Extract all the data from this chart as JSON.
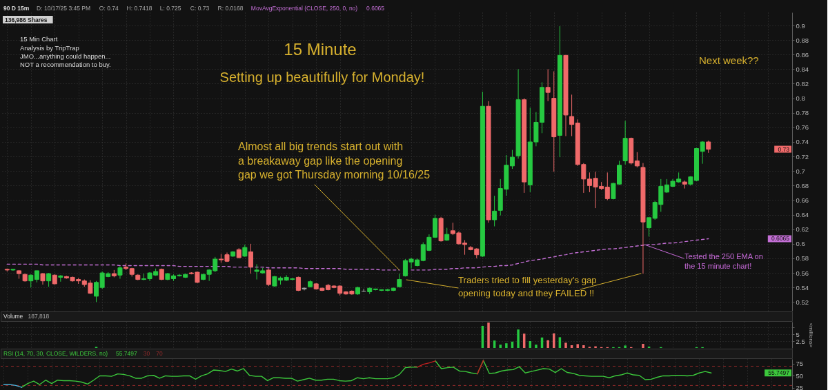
{
  "chart_data": [
    {
      "type": "candlestick",
      "title": "15 Minute",
      "subtitle": "Setting up beautifully for Monday!",
      "categories": [
        null,
        null,
        null,
        null,
        null,
        null,
        null,
        null,
        null,
        null,
        null,
        null,
        null,
        null,
        null,
        null,
        null,
        null,
        null,
        null,
        null,
        null,
        null,
        null,
        null,
        null,
        null,
        null,
        null,
        null,
        null,
        null,
        null,
        null,
        null,
        null,
        null,
        null,
        null,
        null,
        null,
        null,
        null,
        null,
        null,
        null,
        null,
        null,
        null,
        null,
        null,
        null,
        null,
        null,
        null,
        null,
        null,
        null,
        null,
        null,
        null,
        null,
        null,
        null,
        null,
        null,
        null,
        null,
        null,
        null,
        null,
        null,
        null,
        null,
        null,
        null,
        null,
        null,
        null,
        null,
        null,
        null,
        null,
        null,
        null,
        null,
        null,
        null,
        null,
        null,
        null,
        null,
        null,
        null,
        null,
        null,
        null,
        null,
        null,
        null,
        null,
        null,
        null,
        null,
        null,
        null,
        null,
        null,
        null,
        null,
        null,
        null,
        null,
        null,
        null,
        null,
        null,
        null,
        null,
        null,
        null,
        null,
        null,
        null,
        null,
        null,
        null,
        null,
        null,
        null,
        null,
        null
      ],
      "ylim": [
        0.508,
        0.918
      ],
      "yticks": [
        0.52,
        0.54,
        0.56,
        0.58,
        0.6,
        0.62,
        0.64,
        0.66,
        0.68,
        0.7,
        0.72,
        0.74,
        0.76,
        0.78,
        0.8,
        0.82,
        0.84,
        0.86,
        0.88,
        0.9
      ],
      "grid": true,
      "tick_labels": "y",
      "legend": "top left",
      "series": [
        {
          "type": "candlestick",
          "ohlc": [
            [
              0.565,
              0.566,
              0.562,
              0.564
            ],
            [
              0.564,
              0.565,
              0.563,
              0.565
            ],
            [
              0.563,
              0.564,
              0.552,
              0.559
            ],
            [
              0.558,
              0.559,
              0.548,
              0.549
            ],
            [
              0.549,
              0.558,
              0.54,
              0.557
            ],
            [
              0.551,
              0.563,
              0.547,
              0.563
            ],
            [
              0.559,
              0.56,
              0.544,
              0.549
            ],
            [
              0.549,
              0.56,
              0.541,
              0.559
            ],
            [
              0.557,
              0.558,
              0.544,
              0.545
            ],
            [
              0.554,
              0.557,
              0.548,
              0.556
            ],
            [
              0.555,
              0.556,
              0.552,
              0.553
            ],
            [
              0.554,
              0.555,
              0.548,
              0.549
            ],
            [
              0.551,
              0.553,
              0.545,
              0.549
            ],
            [
              0.549,
              0.551,
              0.541,
              0.544
            ],
            [
              0.546,
              0.55,
              0.531,
              0.532
            ],
            [
              0.528,
              0.549,
              0.52,
              0.547
            ],
            [
              0.54,
              0.562,
              0.538,
              0.56
            ],
            [
              0.555,
              0.561,
              0.554,
              0.559
            ],
            [
              0.559,
              0.564,
              0.554,
              0.556
            ],
            [
              0.557,
              0.569,
              0.552,
              0.567
            ],
            [
              0.568,
              0.573,
              0.564,
              0.566
            ],
            [
              0.566,
              0.567,
              0.555,
              0.558
            ],
            [
              0.557,
              0.558,
              0.55,
              0.551
            ],
            [
              0.551,
              0.559,
              0.55,
              0.552
            ],
            [
              0.552,
              0.561,
              0.549,
              0.56
            ],
            [
              0.557,
              0.566,
              0.556,
              0.562
            ],
            [
              0.565,
              0.566,
              0.55,
              0.551
            ],
            [
              0.551,
              0.56,
              0.55,
              0.559
            ],
            [
              0.552,
              0.558,
              0.549,
              0.556
            ],
            [
              0.556,
              0.558,
              0.555,
              0.557
            ],
            [
              0.554,
              0.559,
              0.553,
              0.558
            ],
            [
              0.56,
              0.561,
              0.558,
              0.559
            ],
            [
              0.561,
              0.562,
              0.546,
              0.547
            ],
            [
              0.551,
              0.559,
              0.55,
              0.558
            ],
            [
              0.558,
              0.565,
              0.549,
              0.564
            ],
            [
              0.563,
              0.582,
              0.561,
              0.579
            ],
            [
              0.579,
              0.586,
              0.574,
              0.578
            ],
            [
              0.585,
              0.588,
              0.575,
              0.576
            ],
            [
              0.583,
              0.59,
              0.582,
              0.589
            ],
            [
              0.592,
              0.594,
              0.58,
              0.581
            ],
            [
              0.583,
              0.599,
              0.582,
              0.595
            ],
            [
              0.589,
              0.6,
              0.559,
              0.568
            ],
            [
              0.562,
              0.572,
              0.551,
              0.564
            ],
            [
              0.56,
              0.567,
              0.559,
              0.563
            ],
            [
              0.564,
              0.566,
              0.542,
              0.544
            ],
            [
              0.542,
              0.556,
              0.541,
              0.555
            ],
            [
              0.55,
              0.555,
              0.544,
              0.553
            ],
            [
              0.55,
              0.557,
              0.549,
              0.554
            ],
            [
              0.551,
              0.553,
              0.55,
              0.552
            ],
            [
              0.554,
              0.555,
              0.535,
              0.536
            ],
            [
              0.538,
              0.54,
              0.536,
              0.539
            ],
            [
              0.541,
              0.55,
              0.54,
              0.548
            ],
            [
              0.545,
              0.546,
              0.537,
              0.538
            ],
            [
              0.539,
              0.54,
              0.535,
              0.536
            ],
            [
              0.543,
              0.545,
              0.536,
              0.537
            ],
            [
              0.542,
              0.543,
              0.539,
              0.54
            ],
            [
              0.542,
              0.543,
              0.529,
              0.532
            ],
            [
              0.534,
              0.535,
              0.53,
              0.531
            ],
            [
              0.535,
              0.536,
              0.53,
              0.531
            ],
            [
              0.531,
              0.541,
              0.53,
              0.54
            ],
            [
              0.535,
              0.538,
              0.534,
              0.535
            ],
            [
              0.534,
              0.54,
              0.531,
              0.539
            ],
            [
              0.537,
              0.538,
              0.536,
              0.538
            ],
            [
              0.536,
              0.537,
              0.535,
              0.537
            ],
            [
              0.536,
              0.538,
              0.535,
              0.537
            ],
            [
              0.536,
              0.54,
              0.535,
              0.539
            ],
            [
              0.541,
              0.559,
              0.54,
              0.551
            ],
            [
              0.556,
              0.579,
              0.555,
              0.577
            ],
            [
              0.575,
              0.581,
              0.566,
              0.579
            ],
            [
              0.57,
              0.58,
              0.569,
              0.578
            ],
            [
              0.577,
              0.602,
              0.576,
              0.599
            ],
            [
              0.591,
              0.613,
              0.59,
              0.609
            ],
            [
              0.609,
              0.64,
              0.608,
              0.635
            ],
            [
              0.635,
              0.637,
              0.603,
              0.604
            ],
            [
              0.605,
              0.622,
              0.604,
              0.613
            ],
            [
              0.618,
              0.629,
              0.612,
              0.614
            ],
            [
              0.615,
              0.617,
              0.599,
              0.6
            ],
            [
              0.601,
              0.605,
              0.585,
              0.599
            ],
            [
              0.595,
              0.597,
              0.591,
              0.592
            ],
            [
              0.593,
              0.594,
              0.58,
              0.585
            ],
            [
              0.583,
              0.809,
              0.582,
              0.789
            ],
            [
              0.789,
              0.796,
              0.629,
              0.633
            ],
            [
              0.633,
              0.666,
              0.624,
              0.645
            ],
            [
              0.646,
              0.689,
              0.639,
              0.676
            ],
            [
              0.675,
              0.722,
              0.666,
              0.708
            ],
            [
              0.707,
              0.729,
              0.703,
              0.719
            ],
            [
              0.721,
              0.84,
              0.717,
              0.798
            ],
            [
              0.798,
              0.8,
              0.67,
              0.685
            ],
            [
              0.681,
              0.787,
              0.671,
              0.74
            ],
            [
              0.74,
              0.781,
              0.734,
              0.767
            ],
            [
              0.767,
              0.822,
              0.752,
              0.815
            ],
            [
              0.815,
              0.84,
              0.796,
              0.808
            ],
            [
              0.8,
              0.837,
              0.699,
              0.747
            ],
            [
              0.749,
              0.899,
              0.719,
              0.859
            ],
            [
              0.859,
              0.859,
              0.748,
              0.777
            ],
            [
              0.775,
              0.805,
              0.748,
              0.764
            ],
            [
              0.766,
              0.771,
              0.707,
              0.709
            ],
            [
              0.709,
              0.711,
              0.67,
              0.689
            ],
            [
              0.689,
              0.698,
              0.671,
              0.68
            ],
            [
              0.69,
              0.699,
              0.649,
              0.678
            ],
            [
              0.679,
              0.685,
              0.674,
              0.676
            ],
            [
              0.678,
              0.698,
              0.66,
              0.662
            ],
            [
              0.662,
              0.684,
              0.661,
              0.683
            ],
            [
              0.682,
              0.714,
              0.681,
              0.708
            ],
            [
              0.714,
              0.769,
              0.709,
              0.745
            ],
            [
              0.745,
              0.746,
              0.709,
              0.711
            ],
            [
              0.714,
              0.726,
              0.705,
              0.707
            ],
            [
              0.705,
              0.711,
              0.559,
              0.63
            ],
            [
              0.622,
              0.636,
              0.61,
              0.636
            ],
            [
              0.635,
              0.659,
              0.633,
              0.657
            ],
            [
              0.654,
              0.689,
              0.644,
              0.679
            ],
            [
              0.671,
              0.689,
              0.67,
              0.681
            ],
            [
              0.679,
              0.689,
              0.678,
              0.686
            ],
            [
              0.685,
              0.698,
              0.684,
              0.689
            ],
            [
              0.685,
              0.687,
              0.676,
              0.682
            ],
            [
              0.682,
              0.693,
              0.68,
              0.692
            ],
            [
              0.687,
              0.732,
              0.686,
              0.731
            ],
            [
              0.727,
              0.741,
              0.71,
              0.74
            ],
            [
              0.74,
              0.7418,
              0.725,
              0.73
            ],
            null,
            null,
            null,
            null,
            null,
            null,
            null,
            null,
            null,
            null,
            null,
            null,
            null
          ],
          "colors": [
            "#f06a6a",
            "#26c941",
            "#f06a6a",
            "#f06a6a",
            "#26c941",
            "#26c941",
            "#f06a6a",
            "#26c941",
            "#f06a6a",
            "#26c941",
            "#f06a6a",
            "#f06a6a",
            "#f06a6a",
            "#f06a6a",
            "#f06a6a",
            "#26c941",
            "#26c941",
            "#26c941",
            "#f06a6a",
            "#26c941",
            "#f06a6a",
            "#f06a6a",
            "#f06a6a",
            "#26c941",
            "#26c941",
            "#26c941",
            "#f06a6a",
            "#26c941",
            "#26c941",
            "#26c941",
            "#26c941",
            "#f06a6a",
            "#f06a6a",
            "#26c941",
            "#26c941",
            "#26c941",
            "#f06a6a",
            "#f06a6a",
            "#26c941",
            "#f06a6a",
            "#26c941",
            "#f06a6a",
            "#26c941",
            "#26c941",
            "#f06a6a",
            "#26c941",
            "#26c941",
            "#26c941",
            "#26c941",
            "#f06a6a",
            "#a8a8a8",
            "#26c941",
            "#f06a6a",
            "#f06a6a",
            "#f06a6a",
            "#f06a6a",
            "#f06a6a",
            "#f06a6a",
            "#f06a6a",
            "#26c941",
            "#a8a8a8",
            "#26c941",
            "#26c941",
            "#26c941",
            "#26c941",
            "#26c941",
            "#26c941",
            "#26c941",
            "#26c941",
            "#26c941",
            "#26c941",
            "#26c941",
            "#26c941",
            "#f06a6a",
            "#26c941",
            "#f06a6a",
            "#f06a6a",
            "#f06a6a",
            "#f06a6a",
            "#f06a6a",
            "#26c941",
            "#f06a6a",
            "#26c941",
            "#26c941",
            "#26c941",
            "#26c941",
            "#26c941",
            "#f06a6a",
            "#26c941",
            "#26c941",
            "#26c941",
            "#f06a6a",
            "#f06a6a",
            "#26c941",
            "#f06a6a",
            "#f06a6a",
            "#f06a6a",
            "#f06a6a",
            "#f06a6a",
            "#f06a6a",
            "#f06a6a",
            "#f06a6a",
            "#26c941",
            "#26c941",
            "#26c941",
            "#f06a6a",
            "#f06a6a",
            "#f06a6a",
            "#26c941",
            "#26c941",
            "#26c941",
            "#26c941",
            "#26c941",
            "#26c941",
            "#f06a6a",
            "#26c941",
            "#26c941",
            "#26c941",
            "#f06a6a",
            null,
            null,
            null,
            null,
            null,
            null,
            null,
            null,
            null,
            null,
            null,
            null,
            null
          ]
        },
        {
          "type": "line",
          "name": "MovAvgExponential (CLOSE, 250, 0, no)",
          "color": "#c46fd6",
          "line_style": "dashed",
          "values": [
            0.572,
            0.572,
            0.572,
            0.572,
            0.572,
            0.572,
            0.571,
            0.571,
            0.571,
            0.571,
            0.571,
            0.571,
            0.571,
            0.571,
            0.571,
            0.571,
            0.571,
            0.571,
            0.571,
            0.57,
            0.57,
            0.57,
            0.57,
            0.57,
            0.57,
            0.57,
            0.57,
            0.57,
            0.57,
            0.569,
            0.569,
            0.569,
            0.569,
            0.569,
            0.569,
            0.569,
            0.569,
            0.569,
            0.568,
            0.568,
            0.568,
            0.568,
            0.568,
            0.568,
            0.567,
            0.567,
            0.567,
            0.567,
            0.567,
            0.567,
            0.566,
            0.566,
            0.566,
            0.566,
            0.566,
            0.566,
            0.566,
            0.565,
            0.565,
            0.565,
            0.565,
            0.565,
            0.565,
            0.564,
            0.564,
            0.564,
            0.564,
            null,
            0.564,
            0.564,
            0.564,
            0.564,
            0.565,
            0.565,
            0.565,
            0.566,
            0.566,
            0.567,
            0.567,
            0.567,
            0.568,
            0.569,
            0.569,
            0.57,
            0.57,
            0.571,
            0.573,
            0.575,
            0.577,
            0.578,
            0.579,
            0.581,
            0.582,
            0.584,
            0.585,
            0.587,
            0.588,
            0.589,
            0.59,
            0.591,
            0.592,
            0.593,
            0.593,
            0.594,
            0.595,
            0.596,
            0.597,
            0.598,
            0.599,
            0.599,
            0.6,
            0.601,
            0.601,
            0.602,
            0.603,
            0.604,
            0.605,
            0.606,
            0.607,
            null,
            null,
            null,
            null,
            null,
            null,
            null,
            null,
            null,
            null,
            null,
            null,
            null
          ]
        }
      ],
      "annotations": [
        "90 D 15m",
        "D: 10/17/25 3:45 PM",
        "O: 0.74",
        "H: 0.7418",
        "L: 0.725",
        "C: 0.73",
        "R: 0.0168",
        "0.6065",
        "136,986 Shares",
        "15 Min Chart",
        "Analysis by TripTrap",
        "JMO...anything could happen...",
        "NOT a recommendation to buy.",
        "Almost all big trends start out with\na breakaway gap like  the opening\ngap we got Thursday morning 10/16/25",
        "Next week??",
        "Traders tried to fill yesterday's gap\nopening today and they FAILED !!",
        "Tested the 250 EMA on\nthe 15 minute chart!",
        "0.73",
        "0.6065"
      ]
    },
    {
      "type": "bar",
      "ylabel": "<millions>",
      "categories": [
        null,
        null,
        null,
        null,
        null,
        null,
        null,
        null,
        null,
        null,
        null,
        null,
        null,
        null,
        null,
        null,
        null,
        null,
        null,
        null,
        null,
        null,
        null,
        null,
        null,
        null,
        null,
        null,
        null,
        null,
        null,
        null,
        null,
        null,
        null,
        null,
        null,
        null,
        null,
        null,
        null,
        null,
        null,
        null,
        null,
        null,
        null,
        null,
        null,
        null,
        null,
        null,
        null,
        null,
        null,
        null,
        null,
        null,
        null,
        null,
        null,
        null,
        null,
        null,
        null,
        null,
        null,
        null,
        null,
        null,
        null,
        null,
        null,
        null,
        null,
        null,
        null,
        null,
        null,
        null,
        null,
        null,
        null,
        null,
        null,
        null,
        null,
        null,
        null,
        null,
        null,
        null,
        null,
        null,
        null,
        null,
        null,
        null,
        null,
        null,
        null,
        null,
        null,
        null,
        null,
        null,
        null,
        null,
        null,
        null,
        null,
        null,
        null,
        null,
        null,
        null,
        null,
        null,
        null,
        null,
        null,
        null,
        null,
        null,
        null,
        null,
        null,
        null,
        null,
        null,
        null,
        null
      ],
      "ylim": [
        0,
        9.5
      ],
      "yticks": [
        2.5,
        5,
        {
          "value": 7.5,
          "label": null
        }
      ],
      "grid": true,
      "tick_labels": "y",
      "legend": "top left",
      "series": [
        {
          "name": "Volume",
          "values": [
            null,
            null,
            null,
            null,
            null,
            null,
            null,
            null,
            null,
            null,
            null,
            null,
            null,
            null,
            null,
            0.4,
            null,
            null,
            null,
            null,
            null,
            null,
            null,
            null,
            null,
            null,
            null,
            null,
            null,
            null,
            null,
            null,
            null,
            null,
            null,
            null,
            null,
            null,
            null,
            null,
            null,
            null,
            null,
            null,
            null,
            null,
            null,
            null,
            null,
            null,
            null,
            null,
            null,
            null,
            null,
            null,
            null,
            null,
            null,
            null,
            null,
            null,
            null,
            null,
            null,
            null,
            null,
            null,
            null,
            null,
            null,
            null,
            null,
            null,
            null,
            null,
            null,
            null,
            null,
            null,
            8.0,
            9.2,
            2.7,
            1.2,
            1.7,
            2.3,
            6.7,
            5.2,
            2.5,
            1.2,
            3.8,
            2.8,
            5.3,
            3.9,
            1.9,
            1.0,
            1.4,
            1.0,
            0.4,
            0.6,
            0.3,
            0.3,
            0.3,
            0.3,
            0.9,
            0.3,
            null,
            1.5,
            0.5,
            null,
            0.3,
            null,
            null,
            null,
            null,
            null,
            0.3,
            0.3,
            null,
            null,
            null,
            null,
            null,
            null,
            null,
            null,
            null,
            null,
            null,
            null,
            null,
            null
          ],
          "colors": [
            "#f06a6a",
            "#26c941",
            "#f06a6a",
            "#f06a6a",
            "#26c941",
            "#26c941",
            "#f06a6a",
            "#26c941",
            "#f06a6a",
            "#26c941",
            "#f06a6a",
            "#f06a6a",
            "#f06a6a",
            "#f06a6a",
            "#f06a6a",
            "#26c941",
            "#26c941",
            "#26c941",
            "#f06a6a",
            "#26c941",
            "#f06a6a",
            "#f06a6a",
            "#f06a6a",
            "#26c941",
            "#26c941",
            "#26c941",
            "#f06a6a",
            "#26c941",
            "#26c941",
            "#26c941",
            "#26c941",
            "#f06a6a",
            "#f06a6a",
            "#26c941",
            "#26c941",
            "#26c941",
            "#f06a6a",
            "#f06a6a",
            "#26c941",
            "#f06a6a",
            "#26c941",
            "#f06a6a",
            "#26c941",
            "#26c941",
            "#f06a6a",
            "#26c941",
            "#26c941",
            "#26c941",
            "#26c941",
            "#f06a6a",
            "#a8a8a8",
            "#26c941",
            "#f06a6a",
            "#f06a6a",
            "#f06a6a",
            "#f06a6a",
            "#f06a6a",
            "#f06a6a",
            "#f06a6a",
            "#26c941",
            "#a8a8a8",
            "#26c941",
            "#26c941",
            "#26c941",
            "#26c941",
            "#26c941",
            "#26c941",
            "#26c941",
            "#26c941",
            "#26c941",
            "#26c941",
            "#26c941",
            "#26c941",
            "#f06a6a",
            "#26c941",
            "#f06a6a",
            "#f06a6a",
            "#f06a6a",
            "#f06a6a",
            "#f06a6a",
            "#26c941",
            "#f06a6a",
            "#26c941",
            "#26c941",
            "#26c941",
            "#26c941",
            "#26c941",
            "#f06a6a",
            "#26c941",
            "#26c941",
            "#26c941",
            "#f06a6a",
            "#f06a6a",
            "#26c941",
            "#f06a6a",
            "#f06a6a",
            "#f06a6a",
            "#f06a6a",
            "#f06a6a",
            "#f06a6a",
            "#f06a6a",
            "#f06a6a",
            "#26c941",
            "#26c941",
            "#26c941",
            "#f06a6a",
            "#f06a6a",
            "#f06a6a",
            "#26c941",
            "#26c941",
            "#26c941",
            "#26c941",
            "#26c941",
            "#26c941",
            "#f06a6a",
            "#26c941",
            "#26c941",
            "#26c941",
            "#f06a6a",
            null,
            null,
            null,
            null,
            null,
            null,
            null,
            null,
            null,
            null,
            null,
            null,
            null
          ]
        }
      ],
      "annotations": [
        "187,818"
      ]
    },
    {
      "type": "line",
      "categories": [
        null,
        null,
        null,
        null,
        null,
        null,
        null,
        null,
        null,
        null,
        null,
        null,
        null,
        null,
        null,
        null,
        null,
        null,
        null,
        null,
        null,
        null,
        null,
        null,
        null,
        null,
        null,
        null,
        null,
        null,
        null,
        null,
        null,
        null,
        null,
        null,
        null,
        null,
        null,
        null,
        null,
        null,
        null,
        null,
        null,
        null,
        null,
        null,
        null,
        null,
        null,
        null,
        null,
        null,
        null,
        null,
        null,
        null,
        null,
        null,
        null,
        null,
        null,
        null,
        null,
        null,
        null,
        null,
        null,
        null,
        null,
        null,
        null,
        null,
        null,
        null,
        null,
        null,
        null,
        null,
        null,
        null,
        null,
        null,
        null,
        null,
        null,
        null,
        null,
        null,
        null,
        null,
        null,
        null,
        null,
        null,
        null,
        null,
        null,
        null,
        null,
        null,
        null,
        null,
        null,
        null,
        null,
        null,
        null,
        null,
        null,
        null,
        null,
        null,
        null,
        null,
        null,
        null,
        null,
        null,
        null,
        null,
        null,
        null,
        null,
        null,
        null,
        null,
        null,
        null,
        null,
        null
      ],
      "ylim": [
        22,
        85
      ],
      "yticks": [
        25,
        50,
        75
      ],
      "grid": "x",
      "tick_labels": "y",
      "legend": "top left",
      "ref_lines": [
        {
          "axis": "y",
          "value": 70,
          "color": "#8e2a2a",
          "line_style": "dashed"
        },
        {
          "axis": "y",
          "value": 30,
          "color": "#8e2a2a",
          "line_style": "dashed"
        }
      ],
      "series": [
        {
          "name": "RSI (14, 70, 30, CLOSE, WILDERS, no)",
          "color": "#3cc83c",
          "values": [
            null,
            null,
            null,
            26,
            34,
            39,
            32,
            41,
            34,
            41,
            40,
            40,
            39,
            37,
            33,
            41,
            50,
            50,
            49,
            54,
            53,
            50,
            45,
            45,
            50,
            51,
            45,
            50,
            49,
            49,
            50,
            50,
            43,
            50,
            54,
            62,
            61,
            59,
            64,
            60,
            65,
            51,
            49,
            49,
            40,
            46,
            46,
            45,
            45,
            39,
            42,
            45,
            41,
            41,
            43,
            43,
            40,
            39,
            40,
            46,
            44,
            46,
            44,
            44,
            44,
            46,
            53,
            67,
            68,
            68,
            null,
            null,
            81,
            65,
            67,
            68,
            60,
            59,
            56,
            54,
            82,
            55,
            56,
            60,
            62,
            63,
            69,
            56,
            59,
            62,
            65,
            64,
            57,
            65,
            57,
            55,
            51,
            50,
            49,
            49,
            49,
            46,
            50,
            52,
            56,
            52,
            51,
            42,
            43,
            47,
            50,
            50,
            51,
            51,
            50,
            51,
            56,
            59,
            56,
            null,
            null,
            null,
            null,
            null,
            null,
            null,
            null,
            null,
            null,
            null,
            null,
            null
          ]
        },
        {
          "color": "#c42020",
          "values": [
            null,
            null,
            null,
            null,
            null,
            null,
            null,
            null,
            null,
            null,
            null,
            null,
            null,
            null,
            null,
            null,
            null,
            null,
            null,
            null,
            null,
            null,
            null,
            null,
            null,
            null,
            null,
            null,
            null,
            null,
            null,
            null,
            null,
            null,
            null,
            null,
            null,
            null,
            null,
            null,
            null,
            null,
            null,
            null,
            null,
            null,
            null,
            null,
            null,
            null,
            null,
            null,
            null,
            null,
            null,
            null,
            null,
            null,
            null,
            null,
            null,
            null,
            null,
            null,
            null,
            null,
            null,
            null,
            null,
            68,
            74,
            77,
            81,
            null,
            null,
            null,
            null,
            null,
            null,
            54,
            82,
            null,
            null,
            null,
            null,
            null,
            null,
            null,
            null,
            null,
            null,
            null,
            null,
            null,
            null,
            null,
            null,
            null,
            null,
            null,
            null,
            null,
            null,
            null,
            null,
            null,
            null,
            null,
            null,
            null,
            null,
            null,
            null,
            null,
            null,
            null,
            null,
            null,
            null,
            null,
            null,
            null,
            null,
            null,
            null,
            null,
            null,
            null,
            null,
            null,
            null,
            null
          ]
        },
        {
          "color": "#4ab0d8",
          "values": [
            32,
            32,
            30,
            26,
            null,
            null,
            null,
            null,
            null,
            null,
            null,
            null,
            null,
            null,
            null,
            null,
            null,
            null,
            null,
            null,
            null,
            null,
            null,
            null,
            null,
            null,
            null,
            null,
            null,
            null,
            null,
            null,
            null,
            null,
            null,
            null,
            null,
            null,
            null,
            null,
            null,
            null,
            null,
            null,
            null,
            null,
            null,
            null,
            null,
            null,
            null,
            null,
            null,
            null,
            null,
            null,
            null,
            null,
            null,
            null,
            null,
            null,
            null,
            null,
            null,
            null,
            null,
            null,
            null,
            null,
            null,
            null,
            null,
            null,
            null,
            null,
            null,
            null,
            null,
            null,
            null,
            null,
            null,
            null,
            null,
            null,
            null,
            null,
            null,
            null,
            null,
            null,
            null,
            null,
            null,
            null,
            null,
            null,
            null,
            null,
            null,
            null,
            null,
            null,
            null,
            null,
            null,
            null,
            null,
            null,
            null,
            null,
            null,
            null,
            null,
            null,
            null,
            null,
            null,
            null,
            null,
            null,
            null,
            null,
            null,
            null,
            null,
            null,
            null,
            null,
            null,
            null
          ]
        }
      ],
      "annotations": [
        "55.7497",
        "30",
        "70",
        "55.7497"
      ]
    }
  ]
}
